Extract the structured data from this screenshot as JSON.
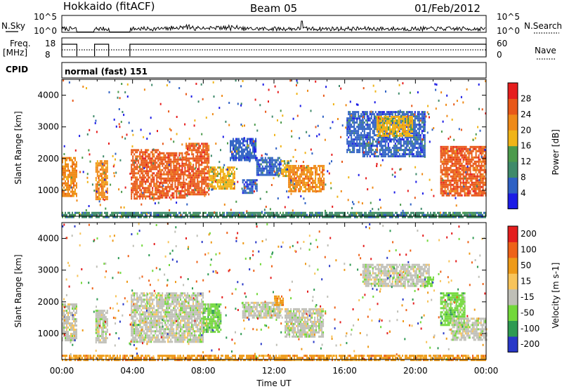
{
  "header": {
    "station": "Hokkaido (fitACF)",
    "beam": "Beam 05",
    "date": "01/Feb/2012"
  },
  "strip_panels": {
    "nsky": {
      "label": "N.Sky",
      "ticks": [
        "10^5",
        "10^0"
      ]
    },
    "nsearch": {
      "label": "N.Search",
      "ticks": [
        "10^5",
        "10^0"
      ]
    },
    "freq": {
      "label_line1": "Freq.",
      "label_line2": "[MHz]",
      "ticks": [
        "18",
        "8"
      ]
    },
    "nave": {
      "label": "Nave",
      "ticks": [
        "60",
        "0"
      ]
    },
    "cpid": {
      "label": "CPID",
      "value": "normal (fast) 151"
    }
  },
  "chart_data": [
    {
      "type": "heatmap",
      "title": "",
      "ylabel": "Slant Range [km]",
      "xlabel": "",
      "x_hours": [
        0,
        24
      ],
      "ylim": [
        180,
        4500
      ],
      "yticks": [
        "1000",
        "2000",
        "3000",
        "4000"
      ],
      "colorbar": {
        "label": "Power [dB]",
        "ticks": [
          "4",
          "8",
          "12",
          "16",
          "20",
          "24",
          "28"
        ],
        "colors": [
          "#1c1ce6",
          "#2f61c4",
          "#3f8a6a",
          "#4c9a4c",
          "#f0b418",
          "#ef8a18",
          "#e85818",
          "#e61e1e"
        ]
      },
      "regions": [
        {
          "t0": 0.0,
          "t1": 0.8,
          "r0": 850,
          "r1": 2050,
          "c": 5
        },
        {
          "t0": 1.9,
          "t1": 2.6,
          "r0": 750,
          "r1": 1950,
          "c": 5
        },
        {
          "t0": 3.9,
          "t1": 5.5,
          "r0": 750,
          "r1": 2300,
          "c": 6
        },
        {
          "t0": 5.5,
          "t1": 7.0,
          "r0": 800,
          "r1": 2200,
          "c": 6
        },
        {
          "t0": 7.0,
          "t1": 8.3,
          "r0": 900,
          "r1": 2500,
          "c": 6
        },
        {
          "t0": 8.3,
          "t1": 9.8,
          "r0": 1050,
          "r1": 1750,
          "c": 4
        },
        {
          "t0": 9.5,
          "t1": 11.0,
          "r0": 1950,
          "r1": 2650,
          "c": 1
        },
        {
          "t0": 10.2,
          "t1": 11.0,
          "r0": 900,
          "r1": 1350,
          "c": 1
        },
        {
          "t0": 11.0,
          "t1": 12.4,
          "r0": 1500,
          "r1": 2050,
          "c": 1
        },
        {
          "t0": 12.4,
          "t1": 12.8,
          "r0": 1450,
          "r1": 1950,
          "c": 4
        },
        {
          "t0": 12.8,
          "t1": 14.8,
          "r0": 1000,
          "r1": 1800,
          "c": 5
        },
        {
          "t0": 16.1,
          "t1": 17.0,
          "r0": 2200,
          "r1": 3500,
          "c": 1
        },
        {
          "t0": 17.0,
          "t1": 20.5,
          "r0": 2100,
          "r1": 3500,
          "c": 1
        },
        {
          "t0": 17.8,
          "t1": 19.8,
          "r0": 2700,
          "r1": 3350,
          "c": 4
        },
        {
          "t0": 21.4,
          "t1": 24.0,
          "r0": 850,
          "r1": 2400,
          "c": 6
        },
        {
          "t0": 0.0,
          "t1": 24.0,
          "r0": 180,
          "r1": 320,
          "c": 2
        }
      ]
    },
    {
      "type": "heatmap",
      "title": "",
      "ylabel": "Slant Range [km]",
      "xlabel": "Time UT",
      "x_hours": [
        0,
        24
      ],
      "ylim": [
        180,
        4500
      ],
      "xticks": [
        "00:00",
        "04:00",
        "08:00",
        "12:00",
        "16:00",
        "20:00",
        "00:00"
      ],
      "yticks": [
        "1000",
        "2000",
        "3000",
        "4000"
      ],
      "colorbar": {
        "label": "Velocity [m s-1]",
        "ticks": [
          "200",
          "100",
          "50",
          "15",
          "-15",
          "-50",
          "-100",
          "-200"
        ],
        "colors": [
          "#2838c8",
          "#2e9a52",
          "#72d83a",
          "#bfbfb7",
          "#f8c45a",
          "#ee9a18",
          "#ee6218",
          "#e41e1e"
        ]
      },
      "regions": [
        {
          "t0": 0.0,
          "t1": 0.8,
          "r0": 800,
          "r1": 1950,
          "c": 3
        },
        {
          "t0": 1.9,
          "t1": 2.6,
          "r0": 750,
          "r1": 1750,
          "c": 3
        },
        {
          "t0": 3.9,
          "t1": 8.0,
          "r0": 750,
          "r1": 2300,
          "c": 3
        },
        {
          "t0": 8.0,
          "t1": 9.0,
          "r0": 1050,
          "r1": 1950,
          "c": 2
        },
        {
          "t0": 10.2,
          "t1": 12.5,
          "r0": 1500,
          "r1": 2000,
          "c": 3
        },
        {
          "t0": 12.0,
          "t1": 12.5,
          "r0": 1900,
          "r1": 2200,
          "c": 5
        },
        {
          "t0": 12.6,
          "t1": 14.8,
          "r0": 900,
          "r1": 1800,
          "c": 3
        },
        {
          "t0": 17.0,
          "t1": 20.8,
          "r0": 2500,
          "r1": 3200,
          "c": 3
        },
        {
          "t0": 20.5,
          "t1": 21.0,
          "r0": 2500,
          "r1": 2800,
          "c": 2
        },
        {
          "t0": 21.4,
          "t1": 22.8,
          "r0": 1300,
          "r1": 2300,
          "c": 2
        },
        {
          "t0": 22.0,
          "t1": 24.0,
          "r0": 800,
          "r1": 1500,
          "c": 3
        },
        {
          "t0": 0.0,
          "t1": 24.0,
          "r0": 180,
          "r1": 330,
          "c": 5
        }
      ]
    }
  ]
}
